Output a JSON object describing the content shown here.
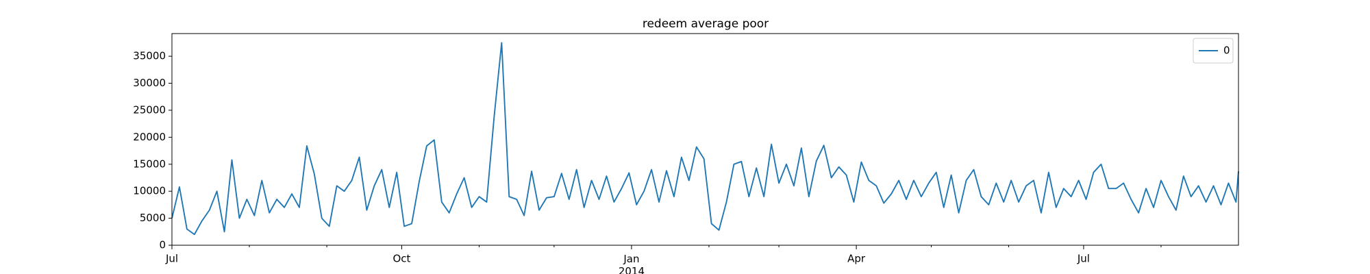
{
  "chart_data": {
    "type": "line",
    "title": "redeem average poor",
    "x": [
      0,
      3,
      6,
      9,
      12,
      15,
      18,
      21,
      24,
      27,
      30,
      33,
      36,
      39,
      42,
      45,
      48,
      51,
      54,
      57,
      60,
      63,
      66,
      69,
      72,
      75,
      78,
      81,
      84,
      87,
      90,
      93,
      96,
      99,
      102,
      105,
      108,
      111,
      114,
      117,
      120,
      123,
      126,
      129,
      132,
      135,
      138,
      141,
      144,
      147,
      150,
      153,
      156,
      159,
      162,
      165,
      168,
      171,
      174,
      177,
      180,
      183,
      186,
      189,
      192,
      195,
      198,
      201,
      204,
      207,
      210,
      213,
      216,
      219,
      222,
      225,
      228,
      231,
      234,
      237,
      240,
      243,
      246,
      249,
      252,
      255,
      258,
      261,
      264,
      267,
      270,
      273,
      276,
      279,
      282,
      285,
      288,
      291,
      294,
      297,
      300,
      303,
      306,
      309,
      312,
      315,
      318,
      321,
      324,
      327,
      330,
      333,
      336,
      339,
      342,
      345,
      348,
      351,
      354,
      357,
      360,
      363,
      366,
      369,
      372,
      375,
      378,
      381,
      384,
      387,
      390,
      393,
      396,
      399,
      402,
      405,
      408,
      411,
      414,
      417,
      420,
      423,
      426,
      427
    ],
    "series": [
      {
        "name": "0",
        "color": "#1f77b4",
        "values": [
          5000,
          10800,
          3000,
          2000,
          4500,
          6500,
          10000,
          2500,
          15800,
          5000,
          8500,
          5500,
          12000,
          6000,
          8500,
          7000,
          9500,
          7000,
          18400,
          13200,
          5000,
          3500,
          11000,
          10000,
          12000,
          16300,
          6500,
          11000,
          14000,
          7000,
          13500,
          3500,
          4000,
          11800,
          18400,
          19500,
          8000,
          6000,
          9500,
          12500,
          7000,
          9000,
          8000,
          23800,
          37500,
          9000,
          8500,
          5500,
          13700,
          6500,
          8800,
          9000,
          13300,
          8500,
          14000,
          7000,
          12000,
          8500,
          12800,
          8000,
          10500,
          13400,
          7500,
          10000,
          14000,
          8000,
          13800,
          9000,
          16300,
          12000,
          18200,
          16000,
          4000,
          2800,
          8000,
          15000,
          15500,
          9000,
          14300,
          9000,
          18700,
          11500,
          15000,
          11000,
          18000,
          9000,
          15600,
          18500,
          12500,
          14500,
          13000,
          8000,
          15400,
          12000,
          11000,
          7800,
          9500,
          12000,
          8500,
          12000,
          9000,
          11500,
          13500,
          7000,
          13000,
          6000,
          12000,
          14000,
          9000,
          7500,
          11500,
          8000,
          12000,
          8000,
          11000,
          12000,
          6000,
          13500,
          7000,
          10500,
          9000,
          12000,
          8500,
          13500,
          15000,
          10500,
          10500,
          11500,
          8500,
          6000,
          10500,
          7000,
          12000,
          9000,
          6500,
          12800,
          9000,
          11000,
          8000,
          11000,
          7500,
          11500,
          8000,
          13700
        ]
      }
    ],
    "xlim": [
      0,
      427
    ],
    "xticks": [
      {
        "value": 0,
        "label": "Jul"
      },
      {
        "value": 92,
        "label": "Oct"
      },
      {
        "value": 184,
        "label": "Jan\n2014"
      },
      {
        "value": 274,
        "label": "Apr"
      },
      {
        "value": 365,
        "label": "Jul"
      }
    ],
    "xminorticks": [
      31,
      62,
      123,
      153,
      215,
      243,
      304,
      335,
      396
    ],
    "ylim": [
      0,
      39200
    ],
    "yticks": [
      0,
      5000,
      10000,
      15000,
      20000,
      25000,
      30000,
      35000
    ],
    "grid": false,
    "legend": "upper right"
  }
}
